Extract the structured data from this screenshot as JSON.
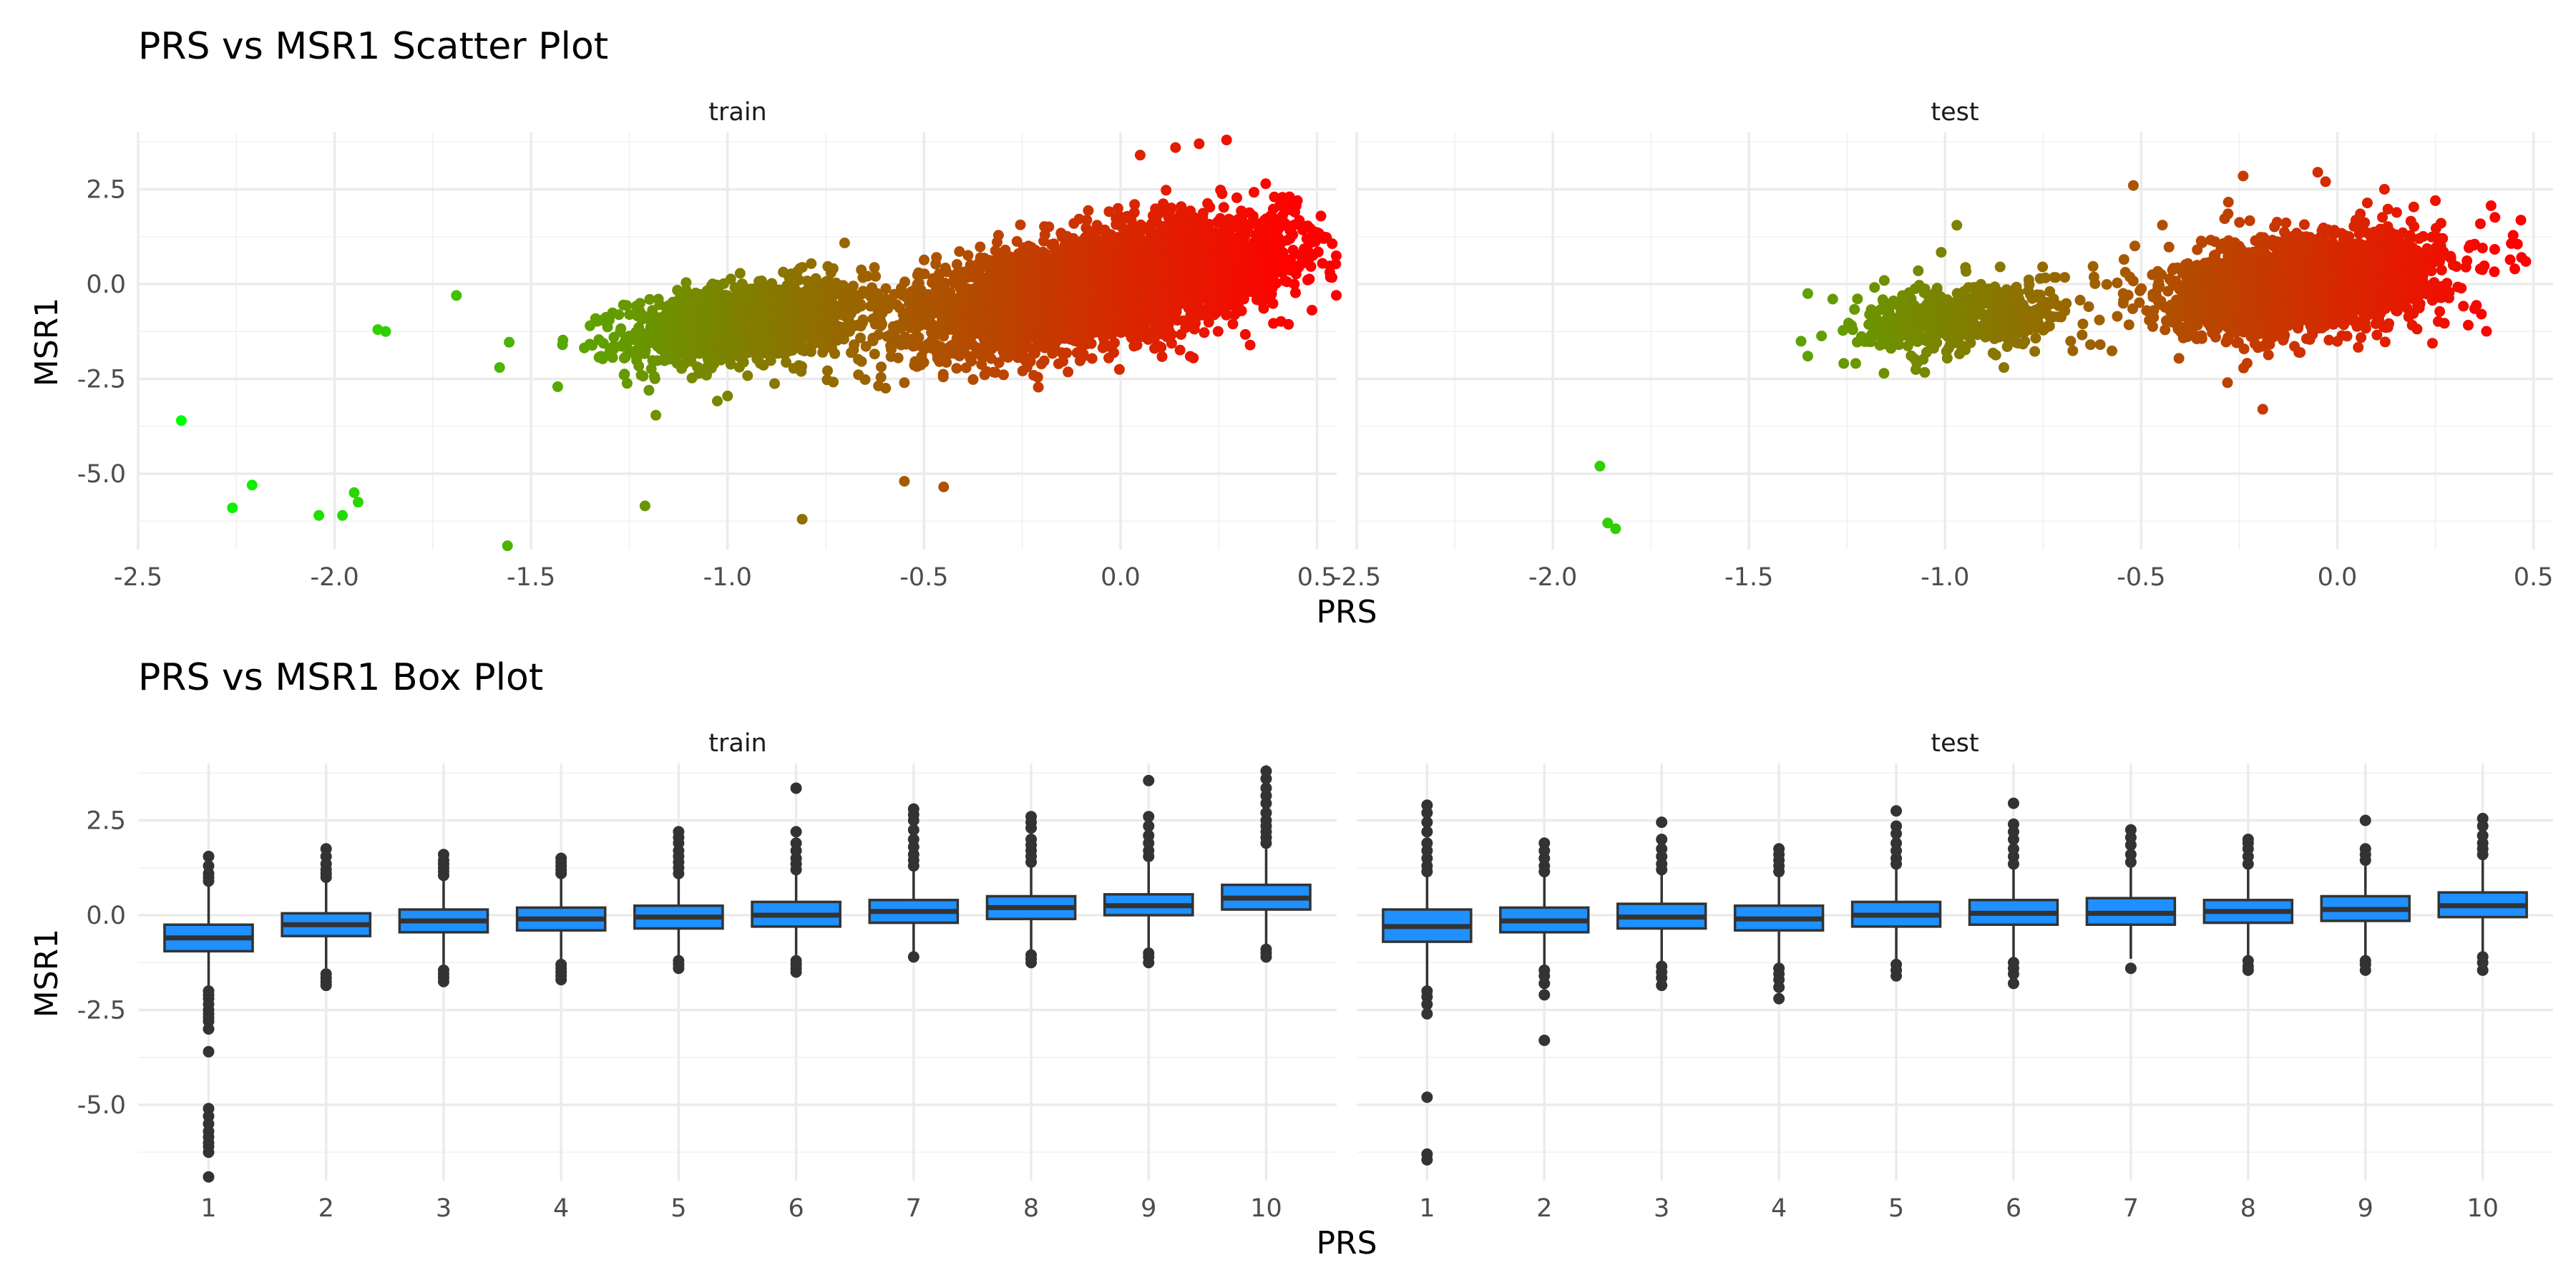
{
  "chart_data": [
    {
      "type": "scatter",
      "title": "PRS vs MSR1 Scatter Plot",
      "xlabel": "PRS",
      "ylabel": "MSR1",
      "facets": [
        "train",
        "test"
      ],
      "xlim": [
        -2.5,
        0.55
      ],
      "ylim": [
        -7.0,
        4.0
      ],
      "x_ticks": [
        "-2.5",
        "-2.0",
        "-1.5",
        "-1.0",
        "-0.5",
        "0.0",
        "0.5"
      ],
      "y_ticks": [
        "2.5",
        "0.0",
        "-2.5",
        "-5.0"
      ],
      "color_gradient": [
        "#00ff00",
        "#ff0000"
      ],
      "grid": true,
      "legend": "none",
      "series": [
        {
          "facet": "train",
          "points": [
            [
              -2.39,
              -3.6
            ],
            [
              -2.26,
              -5.9
            ],
            [
              -2.21,
              -5.3
            ],
            [
              -2.04,
              -6.1
            ],
            [
              -1.98,
              -6.1
            ],
            [
              -1.95,
              -5.5
            ],
            [
              -1.94,
              -5.75
            ],
            [
              -1.89,
              -1.2
            ],
            [
              -1.87,
              -1.25
            ],
            [
              -1.69,
              -0.3
            ],
            [
              -1.58,
              -2.2
            ],
            [
              -1.56,
              -6.9
            ],
            [
              -1.42,
              -1.6
            ],
            [
              -1.35,
              -1.1
            ],
            [
              -1.22,
              -2.4
            ],
            [
              -1.21,
              -5.85
            ],
            [
              -1.2,
              -2.8
            ],
            [
              -1.0,
              -2.95
            ],
            [
              -0.81,
              -6.2
            ],
            [
              -0.55,
              -5.2
            ],
            [
              -0.45,
              -5.35
            ],
            [
              -0.55,
              -2.6
            ],
            [
              0.05,
              3.4
            ],
            [
              0.2,
              3.7
            ],
            [
              0.27,
              3.8
            ],
            [
              0.14,
              3.6
            ],
            [
              0.43,
              2.3
            ],
            [
              0.42,
              2.2
            ],
            [
              0.41,
              2.1
            ],
            [
              0.45,
              2.2
            ]
          ],
          "clusters": [
            {
              "cx": -0.95,
              "cy": -1.0,
              "sx": 0.15,
              "sy": 0.55,
              "rho": 0.35,
              "n": 1300
            },
            {
              "cx": -0.05,
              "cy": -0.05,
              "sx": 0.23,
              "sy": 0.8,
              "rho": 0.55,
              "n": 4500
            }
          ]
        },
        {
          "facet": "test",
          "points": [
            [
              -1.88,
              -4.8
            ],
            [
              -1.86,
              -6.3
            ],
            [
              -1.84,
              -6.45
            ],
            [
              -1.35,
              -0.25
            ],
            [
              -1.35,
              -1.9
            ],
            [
              -0.97,
              1.55
            ],
            [
              -0.52,
              2.6
            ],
            [
              -0.24,
              2.85
            ],
            [
              -0.05,
              2.95
            ],
            [
              -0.03,
              2.7
            ],
            [
              -0.19,
              -3.3
            ],
            [
              -0.28,
              -2.6
            ],
            [
              0.35,
              1.05
            ],
            [
              0.37,
              0.95
            ],
            [
              0.35,
              -0.65
            ],
            [
              0.25,
              2.2
            ],
            [
              0.12,
              2.5
            ],
            [
              -0.85,
              -2.2
            ]
          ],
          "clusters": [
            {
              "cx": -0.95,
              "cy": -0.9,
              "sx": 0.14,
              "sy": 0.5,
              "rho": 0.3,
              "n": 500
            },
            {
              "cx": -0.08,
              "cy": 0.0,
              "sx": 0.17,
              "sy": 0.65,
              "rho": 0.3,
              "n": 2200
            }
          ]
        }
      ]
    },
    {
      "type": "box",
      "title": "PRS vs MSR1 Box Plot",
      "xlabel": "PRS",
      "ylabel": "MSR1",
      "facets": [
        "train",
        "test"
      ],
      "categories": [
        "1",
        "2",
        "3",
        "4",
        "5",
        "6",
        "7",
        "8",
        "9",
        "10"
      ],
      "ylim": [
        -7.0,
        4.0
      ],
      "y_ticks": [
        "2.5",
        "0.0",
        "-2.5",
        "-5.0"
      ],
      "fill": "#1e90ff",
      "grid": true,
      "series": [
        {
          "facet": "train",
          "boxes": [
            {
              "q1": -0.95,
              "median": -0.6,
              "q3": -0.25,
              "whisker_low": -1.85,
              "whisker_high": 0.8,
              "outliers_high": [
                0.9,
                1.0,
                1.1,
                1.3,
                1.55
              ],
              "outliers_low": [
                -2.0,
                -2.1,
                -2.2,
                -2.35,
                -2.5,
                -2.6,
                -2.7,
                -2.8,
                -3.0,
                -3.6,
                -5.1,
                -5.3,
                -5.5,
                -5.7,
                -5.85,
                -6.0,
                -6.1,
                -6.25,
                -6.9
              ]
            },
            {
              "q1": -0.55,
              "median": -0.25,
              "q3": 0.05,
              "whisker_low": -1.4,
              "whisker_high": 0.9,
              "outliers_high": [
                1.0,
                1.1,
                1.2,
                1.35,
                1.55,
                1.75
              ],
              "outliers_low": [
                -1.55,
                -1.65,
                -1.75,
                -1.85
              ]
            },
            {
              "q1": -0.45,
              "median": -0.15,
              "q3": 0.15,
              "whisker_low": -1.3,
              "whisker_high": 0.95,
              "outliers_high": [
                1.05,
                1.15,
                1.25,
                1.35,
                1.45,
                1.6
              ],
              "outliers_low": [
                -1.45,
                -1.55,
                -1.65,
                -1.75
              ]
            },
            {
              "q1": -0.4,
              "median": -0.1,
              "q3": 0.2,
              "whisker_low": -1.2,
              "whisker_high": 1.0,
              "outliers_high": [
                1.1,
                1.2,
                1.3,
                1.4,
                1.5
              ],
              "outliers_low": [
                -1.3,
                -1.4,
                -1.5,
                -1.6,
                -1.7
              ]
            },
            {
              "q1": -0.35,
              "median": -0.05,
              "q3": 0.25,
              "whisker_low": -1.1,
              "whisker_high": 1.0,
              "outliers_high": [
                1.1,
                1.25,
                1.4,
                1.55,
                1.7,
                1.9,
                2.05,
                2.2
              ],
              "outliers_low": [
                -1.2,
                -1.3,
                -1.4
              ]
            },
            {
              "q1": -0.3,
              "median": 0.0,
              "q3": 0.35,
              "whisker_low": -1.05,
              "whisker_high": 1.1,
              "outliers_high": [
                1.2,
                1.35,
                1.5,
                1.7,
                1.9,
                2.2,
                3.35
              ],
              "outliers_low": [
                -1.2,
                -1.3,
                -1.4,
                -1.5
              ]
            },
            {
              "q1": -0.2,
              "median": 0.1,
              "q3": 0.4,
              "whisker_low": -1.0,
              "whisker_high": 1.2,
              "outliers_high": [
                1.3,
                1.45,
                1.6,
                1.8,
                2.0,
                2.25,
                2.5,
                2.65,
                2.8
              ],
              "outliers_low": [
                -1.1
              ]
            },
            {
              "q1": -0.1,
              "median": 0.2,
              "q3": 0.5,
              "whisker_low": -0.95,
              "whisker_high": 1.3,
              "outliers_high": [
                1.4,
                1.55,
                1.7,
                1.85,
                2.0,
                2.3,
                2.45,
                2.6
              ],
              "outliers_low": [
                -1.05,
                -1.15,
                -1.25
              ]
            },
            {
              "q1": 0.0,
              "median": 0.25,
              "q3": 0.55,
              "whisker_low": -0.9,
              "whisker_high": 1.4,
              "outliers_high": [
                1.55,
                1.7,
                1.9,
                2.1,
                2.35,
                2.6,
                3.55
              ],
              "outliers_low": [
                -1.0,
                -1.1,
                -1.25
              ]
            },
            {
              "q1": 0.15,
              "median": 0.45,
              "q3": 0.8,
              "whisker_low": -0.8,
              "whisker_high": 1.75,
              "outliers_high": [
                1.9,
                2.05,
                2.2,
                2.35,
                2.5,
                2.7,
                2.95,
                3.15,
                3.35,
                3.6,
                3.8
              ],
              "outliers_low": [
                -0.9,
                -1.0,
                -1.1
              ]
            }
          ]
        },
        {
          "facet": "test",
          "boxes": [
            {
              "q1": -0.7,
              "median": -0.3,
              "q3": 0.15,
              "whisker_low": -1.9,
              "whisker_high": 1.0,
              "outliers_high": [
                1.15,
                1.3,
                1.5,
                1.7,
                1.9,
                2.2,
                2.45,
                2.7,
                2.9
              ],
              "outliers_low": [
                -2.0,
                -2.15,
                -2.35,
                -2.6,
                -4.8,
                -6.3,
                -6.45
              ]
            },
            {
              "q1": -0.45,
              "median": -0.15,
              "q3": 0.2,
              "whisker_low": -1.35,
              "whisker_high": 1.0,
              "outliers_high": [
                1.15,
                1.3,
                1.5,
                1.7,
                1.9
              ],
              "outliers_low": [
                -1.45,
                -1.6,
                -1.8,
                -2.1,
                -3.3
              ]
            },
            {
              "q1": -0.35,
              "median": -0.05,
              "q3": 0.3,
              "whisker_low": -1.25,
              "whisker_high": 1.1,
              "outliers_high": [
                1.2,
                1.35,
                1.55,
                1.75,
                2.0,
                2.45
              ],
              "outliers_low": [
                -1.35,
                -1.5,
                -1.65,
                -1.85
              ]
            },
            {
              "q1": -0.4,
              "median": -0.1,
              "q3": 0.25,
              "whisker_low": -1.3,
              "whisker_high": 1.05,
              "outliers_high": [
                1.15,
                1.3,
                1.45,
                1.6,
                1.75
              ],
              "outliers_low": [
                -1.4,
                -1.55,
                -1.7,
                -1.9,
                -2.2
              ]
            },
            {
              "q1": -0.3,
              "median": 0.0,
              "q3": 0.35,
              "whisker_low": -1.2,
              "whisker_high": 1.2,
              "outliers_high": [
                1.35,
                1.5,
                1.7,
                1.9,
                2.15,
                2.35,
                2.75
              ],
              "outliers_low": [
                -1.3,
                -1.45,
                -1.6
              ]
            },
            {
              "q1": -0.25,
              "median": 0.05,
              "q3": 0.4,
              "whisker_low": -1.15,
              "whisker_high": 1.2,
              "outliers_high": [
                1.35,
                1.55,
                1.75,
                2.0,
                2.2,
                2.4,
                2.95
              ],
              "outliers_low": [
                -1.25,
                -1.4,
                -1.55,
                -1.8
              ]
            },
            {
              "q1": -0.25,
              "median": 0.05,
              "q3": 0.45,
              "whisker_low": -1.15,
              "whisker_high": 1.25,
              "outliers_high": [
                1.4,
                1.6,
                1.85,
                2.05,
                2.25
              ],
              "outliers_low": [
                -1.4
              ]
            },
            {
              "q1": -0.2,
              "median": 0.1,
              "q3": 0.4,
              "whisker_low": -1.1,
              "whisker_high": 1.2,
              "outliers_high": [
                1.35,
                1.55,
                1.75,
                1.9,
                2.0
              ],
              "outliers_low": [
                -1.2,
                -1.35,
                -1.45
              ]
            },
            {
              "q1": -0.15,
              "median": 0.15,
              "q3": 0.5,
              "whisker_low": -1.1,
              "whisker_high": 1.3,
              "outliers_high": [
                1.45,
                1.6,
                1.75,
                2.5
              ],
              "outliers_low": [
                -1.2,
                -1.3,
                -1.45
              ]
            },
            {
              "q1": -0.05,
              "median": 0.25,
              "q3": 0.6,
              "whisker_low": -1.0,
              "whisker_high": 1.45,
              "outliers_high": [
                1.6,
                1.75,
                1.9,
                2.1,
                2.35,
                2.55
              ],
              "outliers_low": [
                -1.1,
                -1.25,
                -1.45
              ]
            }
          ]
        }
      ]
    }
  ]
}
